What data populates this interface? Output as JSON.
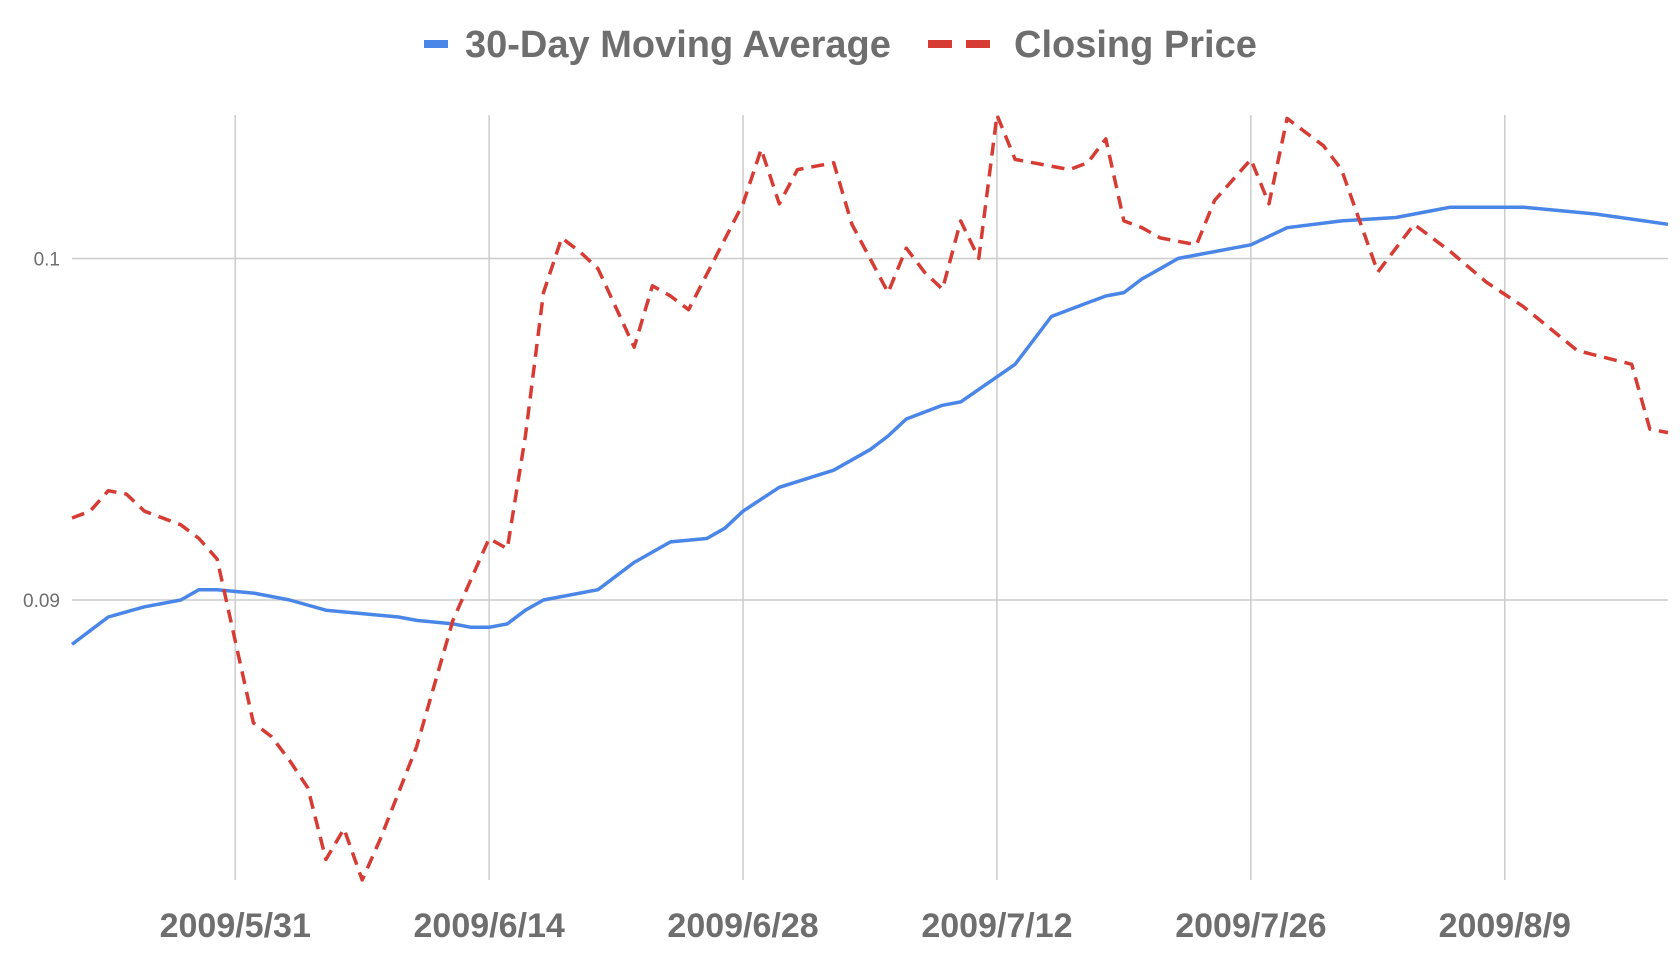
{
  "chart_data": {
    "type": "line",
    "title": "",
    "xlabel": "",
    "ylabel": "",
    "legend_position": "top",
    "grid": true,
    "xlim": [
      "2009-05-22",
      "2009-08-18"
    ],
    "ylim": [
      0.0818,
      0.1042
    ],
    "y_ticks": [
      0.09,
      0.1
    ],
    "y_tick_labels": [
      "0.09",
      "0.1"
    ],
    "x_ticks": [
      "2009-05-31",
      "2009-06-14",
      "2009-06-28",
      "2009-07-12",
      "2009-07-26",
      "2009-08-09"
    ],
    "x_tick_labels": [
      "2009/5/31",
      "2009/6/14",
      "2009/6/28",
      "2009/7/12",
      "2009/7/26",
      "2009/8/9"
    ],
    "series": [
      {
        "name": "30-Day Moving Average",
        "color": "#4a86e8",
        "dash": "solid",
        "x": [
          "2009-05-22",
          "2009-05-23",
          "2009-05-24",
          "2009-05-26",
          "2009-05-28",
          "2009-05-29",
          "2009-05-30",
          "2009-06-01",
          "2009-06-02",
          "2009-06-03",
          "2009-06-05",
          "2009-06-07",
          "2009-06-09",
          "2009-06-10",
          "2009-06-12",
          "2009-06-13",
          "2009-06-14",
          "2009-06-15",
          "2009-06-16",
          "2009-06-17",
          "2009-06-20",
          "2009-06-22",
          "2009-06-24",
          "2009-06-26",
          "2009-06-27",
          "2009-06-28",
          "2009-06-30",
          "2009-07-03",
          "2009-07-05",
          "2009-07-06",
          "2009-07-07",
          "2009-07-09",
          "2009-07-10",
          "2009-07-13",
          "2009-07-15",
          "2009-07-17",
          "2009-07-18",
          "2009-07-19",
          "2009-07-20",
          "2009-07-21",
          "2009-07-22",
          "2009-07-23",
          "2009-07-24",
          "2009-07-25",
          "2009-07-26",
          "2009-07-28",
          "2009-07-31",
          "2009-08-03",
          "2009-08-05",
          "2009-08-06",
          "2009-08-07",
          "2009-08-10",
          "2009-08-14",
          "2009-08-18"
        ],
        "values": [
          0.0887,
          0.0891,
          0.0895,
          0.0898,
          0.09,
          0.0903,
          0.0903,
          0.0902,
          0.0901,
          0.09,
          0.0897,
          0.0896,
          0.0895,
          0.0894,
          0.0893,
          0.0892,
          0.0892,
          0.0893,
          0.0897,
          0.09,
          0.0903,
          0.0911,
          0.0917,
          0.0918,
          0.0921,
          0.0926,
          0.0933,
          0.0938,
          0.0944,
          0.0948,
          0.0953,
          0.0957,
          0.0958,
          0.0969,
          0.0983,
          0.0987,
          0.0989,
          0.099,
          0.0994,
          0.0997,
          0.1,
          0.1001,
          0.1002,
          0.1003,
          0.1004,
          0.1009,
          0.1011,
          0.1012,
          0.1014,
          0.1015,
          0.1015,
          0.1015,
          0.1013,
          0.101
        ]
      },
      {
        "name": "Closing Price",
        "color": "#d63c34",
        "dash": "dashed",
        "x": [
          "2009-05-22",
          "2009-05-23",
          "2009-05-24",
          "2009-05-25",
          "2009-05-26",
          "2009-05-28",
          "2009-05-29",
          "2009-05-30",
          "2009-06-01",
          "2009-06-02",
          "2009-06-03",
          "2009-06-04",
          "2009-06-05",
          "2009-06-06",
          "2009-06-07",
          "2009-06-08",
          "2009-06-10",
          "2009-06-12",
          "2009-06-14",
          "2009-06-15",
          "2009-06-16",
          "2009-06-17",
          "2009-06-18",
          "2009-06-19",
          "2009-06-20",
          "2009-06-22",
          "2009-06-23",
          "2009-06-24",
          "2009-06-25",
          "2009-06-28",
          "2009-06-29",
          "2009-06-30",
          "2009-07-01",
          "2009-07-02",
          "2009-07-03",
          "2009-07-04",
          "2009-07-06",
          "2009-07-07",
          "2009-07-08",
          "2009-07-09",
          "2009-07-10",
          "2009-07-11",
          "2009-07-12",
          "2009-07-13",
          "2009-07-14",
          "2009-07-15",
          "2009-07-16",
          "2009-07-17",
          "2009-07-18",
          "2009-07-19",
          "2009-07-20",
          "2009-07-21",
          "2009-07-23",
          "2009-07-24",
          "2009-07-26",
          "2009-07-27",
          "2009-07-28",
          "2009-07-29",
          "2009-07-30",
          "2009-07-31",
          "2009-08-02",
          "2009-08-04",
          "2009-08-06",
          "2009-08-08",
          "2009-08-10",
          "2009-08-13",
          "2009-08-16",
          "2009-08-17",
          "2009-08-18"
        ],
        "values": [
          0.0924,
          0.0926,
          0.0932,
          0.0931,
          0.0926,
          0.0922,
          0.0918,
          0.0912,
          0.0864,
          0.086,
          0.0853,
          0.0845,
          0.0824,
          0.0833,
          0.0818,
          0.083,
          0.0857,
          0.0894,
          0.0918,
          0.0915,
          0.0948,
          0.099,
          0.1006,
          0.1002,
          0.0997,
          0.0974,
          0.0992,
          0.0989,
          0.0985,
          0.1016,
          0.1032,
          0.1016,
          0.1026,
          0.1027,
          0.1028,
          0.101,
          0.099,
          0.1003,
          0.0996,
          0.0991,
          0.1011,
          0.1,
          0.1042,
          0.1029,
          0.1028,
          0.1027,
          0.1026,
          0.1028,
          0.1035,
          0.1011,
          0.1009,
          0.1006,
          0.1004,
          0.1017,
          0.1029,
          0.1016,
          0.1041,
          0.1037,
          0.1033,
          0.1026,
          0.0996,
          0.101,
          0.1002,
          0.0993,
          0.0986,
          0.0973,
          0.0969,
          0.095,
          0.0949
        ]
      }
    ]
  }
}
